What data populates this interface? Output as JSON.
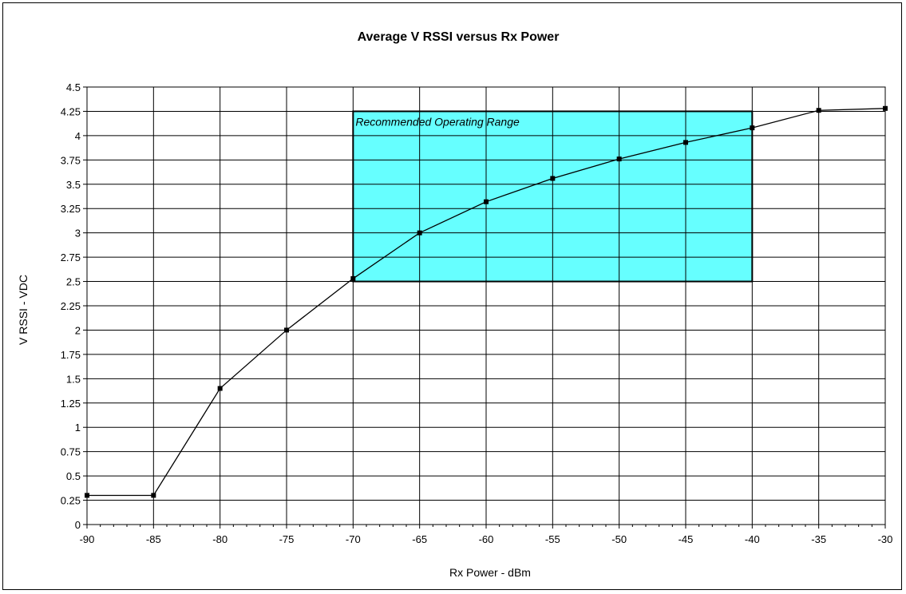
{
  "chart_data": {
    "type": "line",
    "title": "Average V RSSI versus Rx Power",
    "xlabel": "Rx Power - dBm",
    "ylabel": "V RSSI - VDC",
    "xlim": [
      -90,
      -30
    ],
    "ylim": [
      0,
      4.5
    ],
    "x_ticks": [
      -90,
      -85,
      -80,
      -75,
      -70,
      -65,
      -60,
      -55,
      -50,
      -45,
      -40,
      -35,
      -30
    ],
    "x_tick_labels": [
      "-90",
      "-85",
      "-80",
      "-75",
      "-70",
      "-65",
      "-60",
      "-55",
      "-50",
      "-45",
      "-40",
      "-35",
      "-30"
    ],
    "y_ticks": [
      0,
      0.25,
      0.5,
      0.75,
      1,
      1.25,
      1.5,
      1.75,
      2,
      2.25,
      2.5,
      2.75,
      3,
      3.25,
      3.5,
      3.75,
      4,
      4.25,
      4.5
    ],
    "y_tick_labels": [
      "0",
      "0.25",
      "0.5",
      "0.75",
      "1",
      "1.25",
      "1.5",
      "1.75",
      "2",
      "2.25",
      "2.5",
      "2.75",
      "3",
      "3.25",
      "3.5",
      "3.75",
      "4",
      "4.25",
      "4.5"
    ],
    "grid": true,
    "series": [
      {
        "color": "#000000",
        "x": [
          -90,
          -85,
          -80,
          -75,
          -70,
          -65,
          -60,
          -55,
          -50,
          -45,
          -40,
          -35,
          -30
        ],
        "y": [
          0.3,
          0.3,
          1.4,
          2.0,
          2.53,
          3.0,
          3.32,
          3.56,
          3.76,
          3.93,
          4.08,
          4.26,
          4.28
        ]
      }
    ],
    "annotations": [
      {
        "text": "Recommended Operating Range",
        "x_range": [
          -70,
          -40
        ],
        "y_range": [
          2.5,
          4.25
        ],
        "fill": "#66ffff"
      }
    ]
  }
}
